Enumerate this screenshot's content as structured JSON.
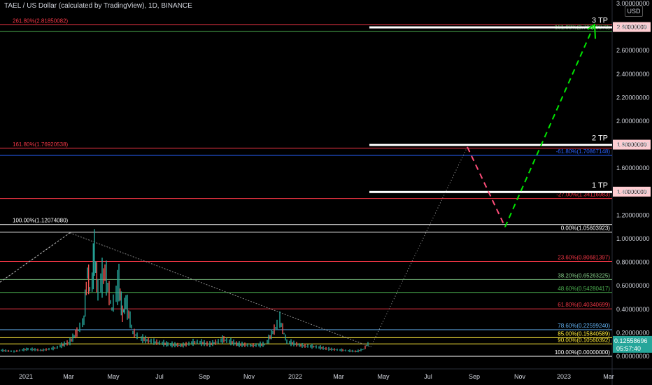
{
  "header": {
    "title": "TAEL / US Dollar (calculated by TradingView), 1D, BINANCE",
    "currency": "USD"
  },
  "chart_data": {
    "type": "line",
    "title": "TAEL / US Dollar (calculated by TradingView), 1D, BINANCE",
    "xlabel": "",
    "ylabel": "",
    "ylim": [
      0,
      3.0
    ],
    "grid": false,
    "x_ticks": [
      "2021",
      "Mar",
      "May",
      "Jul",
      "Sep",
      "Nov",
      "2022",
      "Mar",
      "May",
      "Jul",
      "Sep",
      "Nov",
      "2023",
      "Mar"
    ],
    "y_ticks": [
      "3.00000000",
      "2.80000000",
      "2.60000000",
      "2.40000000",
      "2.20000000",
      "2.00000000",
      "1.80000000",
      "1.60000000",
      "1.40000000",
      "1.20000000",
      "1.00000000",
      "0.80000000",
      "0.60000000",
      "0.40000000",
      "0.20000000",
      "0.00000000"
    ],
    "last_price": "0.12558696",
    "countdown": "05:57:40",
    "left_fib_labels": [
      {
        "text": "261.80%(2.81850082)",
        "value": 2.8185,
        "color": "#f23645"
      },
      {
        "text": "161.80%(1.76920538)",
        "value": 1.7692,
        "color": "#f23645"
      },
      {
        "text": "100.00%(1.12074080)",
        "value": 1.1207,
        "color": "#ffffff"
      }
    ],
    "right_fib_labels": [
      {
        "text": "161.80%(2.76370973)",
        "value": 2.7637,
        "color": "#4caf50"
      },
      {
        "text": "-61.80%(1.70867148)",
        "value": 1.7087,
        "color": "#2962ff"
      },
      {
        "text": "-27.00%(1.34116983)",
        "value": 1.3412,
        "color": "#f23645"
      },
      {
        "text": "0.00%(1.05603923)",
        "value": 1.056,
        "color": "#ffffff"
      },
      {
        "text": "23.60%(0.80681397)",
        "value": 0.8068,
        "color": "#f23645"
      },
      {
        "text": "38.20%(0.65263225)",
        "value": 0.6526,
        "color": "#81c784"
      },
      {
        "text": "48.60%(0.54280417)",
        "value": 0.5428,
        "color": "#4caf50"
      },
      {
        "text": "61.80%(0.40340699)",
        "value": 0.4034,
        "color": "#f23645"
      },
      {
        "text": "78.60%(0.22599240)",
        "value": 0.226,
        "color": "#64b5f6"
      },
      {
        "text": "85.00%(0.15840589)",
        "value": 0.1584,
        "color": "#ffeb3b"
      },
      {
        "text": "90.00%(0.10560392)",
        "value": 0.1056,
        "color": "#ffeb3b"
      },
      {
        "text": "100.00%(0.00000000)",
        "value": 0.0,
        "color": "#ffffff"
      }
    ],
    "targets": [
      {
        "text": "1 TP",
        "value": 1.4,
        "price_label": "1.40000000"
      },
      {
        "text": "2 TP",
        "value": 1.8,
        "price_label": "1.80000000"
      },
      {
        "text": "3 TP",
        "value": 2.8,
        "price_label": "2.80000000"
      }
    ],
    "projection_red": [
      [
        1.78,
        0.65
      ],
      [
        1.1,
        0.73
      ]
    ],
    "projection_green": [
      [
        1.1,
        0.73
      ],
      [
        2.8,
        1.0
      ]
    ],
    "price_series": [
      [
        0.0,
        0.05
      ],
      [
        0.02,
        0.04
      ],
      [
        0.04,
        0.06
      ],
      [
        0.06,
        0.05
      ],
      [
        0.08,
        0.07
      ],
      [
        0.1,
        0.12
      ],
      [
        0.11,
        0.2
      ],
      [
        0.12,
        0.3
      ],
      [
        0.125,
        0.7
      ],
      [
        0.13,
        0.5
      ],
      [
        0.135,
        0.85
      ],
      [
        0.14,
        0.55
      ],
      [
        0.15,
        0.7
      ],
      [
        0.16,
        0.4
      ],
      [
        0.17,
        0.6
      ],
      [
        0.175,
        0.35
      ],
      [
        0.18,
        0.45
      ],
      [
        0.19,
        0.2
      ],
      [
        0.2,
        0.15
      ],
      [
        0.22,
        0.12
      ],
      [
        0.24,
        0.1
      ],
      [
        0.26,
        0.09
      ],
      [
        0.28,
        0.12
      ],
      [
        0.3,
        0.1
      ],
      [
        0.32,
        0.14
      ],
      [
        0.34,
        0.1
      ],
      [
        0.36,
        0.09
      ],
      [
        0.38,
        0.1
      ],
      [
        0.4,
        0.3
      ],
      [
        0.41,
        0.12
      ],
      [
        0.43,
        0.09
      ],
      [
        0.45,
        0.08
      ],
      [
        0.47,
        0.06
      ],
      [
        0.49,
        0.05
      ],
      [
        0.51,
        0.04
      ],
      [
        0.52,
        0.06
      ],
      [
        0.53,
        0.13
      ]
    ]
  }
}
